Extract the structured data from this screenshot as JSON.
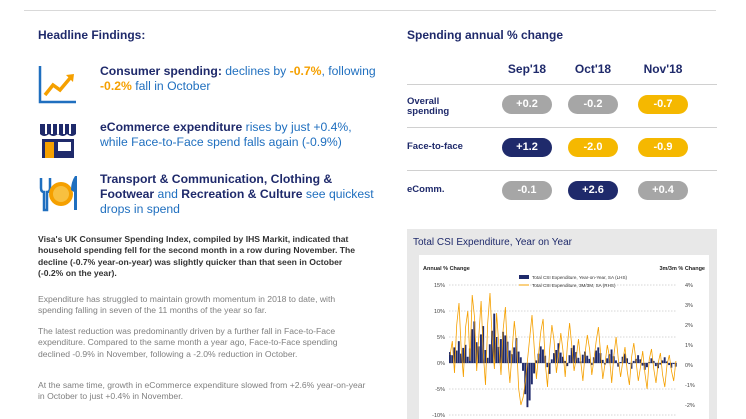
{
  "left": {
    "title": "Headline Findings:",
    "findings": [
      {
        "bold": "Consumer spending:",
        "t1": " declines by ",
        "v1": "-0.7%",
        "t2": ", following ",
        "v2": "-0.2%",
        "t3": " fall in October"
      },
      {
        "bold": "eCommerce expenditure",
        "t1": " rises by just +0.4%, while Face-to-Face spend falls again (-0.9%)"
      },
      {
        "bold1": "Transport & Communication, Clothing & Footwear",
        "and": " and ",
        "bold2": "Recreation & Culture",
        "t1": " see quickest drops in spend"
      }
    ],
    "intro_bold": "Visa's UK Consumer Spending Index, compiled by IHS Markit, indicated that household spending fell for the second month in a row during November. The decline (-0.7% year-on-year) was slightly quicker than that seen in October (-0.2% on the year).",
    "para1": "Expenditure has struggled to maintain growth momentum in 2018 to date, with spending falling in seven of the 11 months of the year so far.",
    "para2": "The latest reduction was predominantly driven by a further fall in Face-to-Face expenditure. Compared to the same month a year ago, Face-to-Face spending declined -0.9% in November, following a -2.0% reduction in October.",
    "para3": "At the same time, growth in eCommerce expenditure slowed from +2.6% year-on-year in October to just +0.4% in November."
  },
  "right": {
    "title": "Spending annual % change",
    "columns": [
      "Sep'18",
      "Oct'18",
      "Nov'18"
    ],
    "rows": [
      {
        "label1": "Overall",
        "label2": "spending",
        "cells": [
          "+0.2",
          "-0.2",
          "-0.7"
        ],
        "kinds": [
          "grey",
          "grey",
          "orange"
        ]
      },
      {
        "label1": "Face-to-face",
        "label2": "",
        "cells": [
          "+1.2",
          "-2.0",
          "-0.9"
        ],
        "kinds": [
          "navy",
          "orange",
          "orange"
        ]
      },
      {
        "label1": "eComm.",
        "label2": "",
        "cells": [
          "-0.1",
          "+2.6",
          "+0.4"
        ],
        "kinds": [
          "grey",
          "navy",
          "grey"
        ]
      }
    ]
  },
  "chart_data": {
    "type": "bar",
    "title": "Total CSI Expenditure, Year on Year",
    "ylabel_left": "Annual % Change",
    "ylabel_right": "3m/3m % Change",
    "left_ticks": [
      "15%",
      "10%",
      "5%",
      "0%",
      "-5%",
      "-10%"
    ],
    "right_ticks": [
      "4%",
      "3%",
      "2%",
      "1%",
      "0%",
      "-1%",
      "-2%"
    ],
    "ylim_left": [
      -10,
      15
    ],
    "ylim_right": [
      -2.5,
      4
    ],
    "legend": [
      "Total CSI Expenditure, Year-on-Year, SA (LHS)",
      "Total CSI Expenditure, 3M/3M, SA (RHS)"
    ],
    "yoy_values": [
      2.1,
      1.5,
      3.0,
      2.4,
      4.2,
      1.8,
      2.9,
      3.5,
      1.2,
      2.8,
      6.5,
      8.0,
      4.0,
      3.2,
      5.5,
      7.1,
      2.5,
      1.0,
      3.6,
      6.2,
      9.5,
      5.0,
      3.1,
      4.6,
      6.0,
      5.3,
      4.1,
      2.4,
      1.7,
      3.0,
      4.8,
      2.2,
      1.1,
      -1.5,
      -6.0,
      -8.5,
      -7.2,
      -4.1,
      -2.0,
      0.5,
      1.8,
      3.2,
      2.6,
      1.4,
      -0.8,
      -2.1,
      0.7,
      1.9,
      2.5,
      3.8,
      2.0,
      1.2,
      0.4,
      -0.6,
      1.5,
      2.9,
      3.4,
      2.1,
      1.0,
      0.3,
      1.6,
      2.2,
      1.4,
      0.8,
      -0.4,
      1.1,
      2.4,
      3.0,
      1.9,
      0.6,
      -0.3,
      0.9,
      1.7,
      2.6,
      1.3,
      0.5,
      -0.7,
      0.2,
      1.2,
      1.8,
      0.9,
      -0.2,
      -1.1,
      0.4,
      0.8,
      1.5,
      0.7,
      -0.5,
      -1.3,
      -0.8,
      0.2,
      0.9,
      0.4,
      -0.6,
      -1.0,
      -0.3,
      0.5,
      1.1,
      0.3,
      -0.4,
      -0.9,
      -0.2,
      -0.7
    ],
    "mom_values": [
      0.5,
      1.2,
      -0.4,
      2.0,
      3.1,
      0.8,
      -0.6,
      1.9,
      2.7,
      0.2,
      3.5,
      2.4,
      -0.3,
      1.5,
      3.2,
      0.6,
      -1.0,
      2.1,
      3.6,
      1.3,
      -0.2,
      2.6,
      1.0,
      -0.5,
      1.8,
      2.9,
      0.4,
      -0.9,
      0.7,
      2.2,
      1.1,
      -1.2,
      -2.0,
      -1.6,
      -0.8,
      0.3,
      1.4,
      2.5,
      0.9,
      -0.7,
      0.6,
      1.7,
      2.3,
      0.1,
      -1.1,
      0.8,
      2.0,
      1.2,
      -0.4,
      0.5,
      1.6,
      0.7,
      -0.6,
      1.0,
      2.1,
      0.9,
      -0.3,
      0.4,
      1.3,
      0.2,
      -0.8,
      0.6,
      1.5,
      0.8,
      -0.5,
      0.3,
      1.2,
      1.9,
      0.6,
      -0.7,
      0.1,
      1.0,
      0.4,
      -0.9,
      0.5,
      1.4,
      0.3,
      -0.6,
      0.2,
      0.9,
      -0.3,
      -1.0,
      0.4,
      1.1,
      0.2,
      -0.8,
      -0.1,
      0.7,
      -0.4,
      -1.2,
      0.3,
      0.8,
      -0.2,
      -0.9,
      0.1,
      0.6,
      -0.5,
      -1.1,
      0.0,
      0.5,
      -0.3,
      -0.8,
      0.2
    ],
    "colors": {
      "yoy": "#1f2a6b",
      "mom": "#f5a000"
    }
  }
}
